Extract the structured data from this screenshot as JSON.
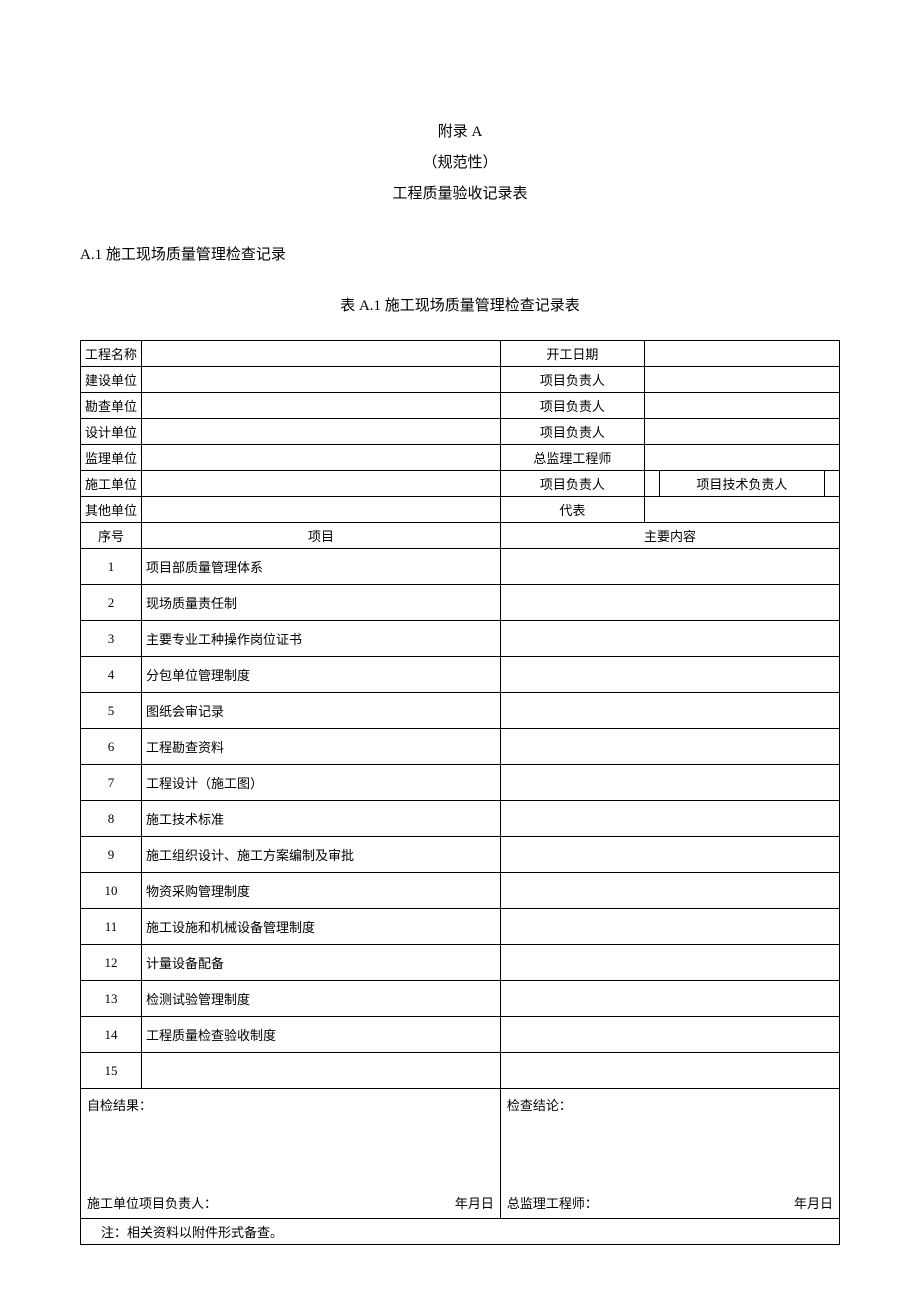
{
  "header": {
    "appendix": "附录 A",
    "normative": "（规范性）",
    "title": "工程质量验收记录表"
  },
  "section": {
    "heading": "A.1 施工现场质量管理检查记录",
    "tableCaption": "表 A.1 施工现场质量管理检查记录表"
  },
  "info": {
    "rows": [
      {
        "label1": "工程名称",
        "label2": "开工日期",
        "extra": null
      },
      {
        "label1": "建设单位",
        "label2": "项目负责人",
        "extra": null
      },
      {
        "label1": "勘查单位",
        "label2": "项目负责人",
        "extra": null
      },
      {
        "label1": "设计单位",
        "label2": "项目负责人",
        "extra": null
      },
      {
        "label1": "监理单位",
        "label2": "总监理工程师",
        "extra": null
      },
      {
        "label1": "施工单位",
        "label2": "项目负责人",
        "extra": "项目技术负责人"
      },
      {
        "label1": "其他单位",
        "label2": "代表",
        "extra": null
      }
    ]
  },
  "columns": {
    "seq": "序号",
    "item": "项目",
    "content": "主要内容"
  },
  "items": [
    {
      "seq": "1",
      "item": "项目部质量管理体系"
    },
    {
      "seq": "2",
      "item": "现场质量责任制"
    },
    {
      "seq": "3",
      "item": "主要专业工种操作岗位证书"
    },
    {
      "seq": "4",
      "item": "分包单位管理制度"
    },
    {
      "seq": "5",
      "item": "图纸会审记录"
    },
    {
      "seq": "6",
      "item": "工程勘查资料"
    },
    {
      "seq": "7",
      "item": "工程设计（施工图）"
    },
    {
      "seq": "8",
      "item": "施工技术标准"
    },
    {
      "seq": "9",
      "item": "施工组织设计、施工方案编制及审批"
    },
    {
      "seq": "10",
      "item": "物资采购管理制度"
    },
    {
      "seq": "11",
      "item": "施工设施和机械设备管理制度"
    },
    {
      "seq": "12",
      "item": "计量设备配备"
    },
    {
      "seq": "13",
      "item": "检测试验管理制度"
    },
    {
      "seq": "14",
      "item": "工程质量检查验收制度"
    },
    {
      "seq": "15",
      "item": ""
    }
  ],
  "footer": {
    "leftTop": "自检结果：",
    "leftBottomLabel": "施工单位项目负责人：",
    "leftBottomDate": "年月日",
    "rightTop": "检查结论：",
    "rightBottomLabel": "总监理工程师：",
    "rightBottomDate": "年月日",
    "note": "注：相关资料以附件形式备查。"
  }
}
